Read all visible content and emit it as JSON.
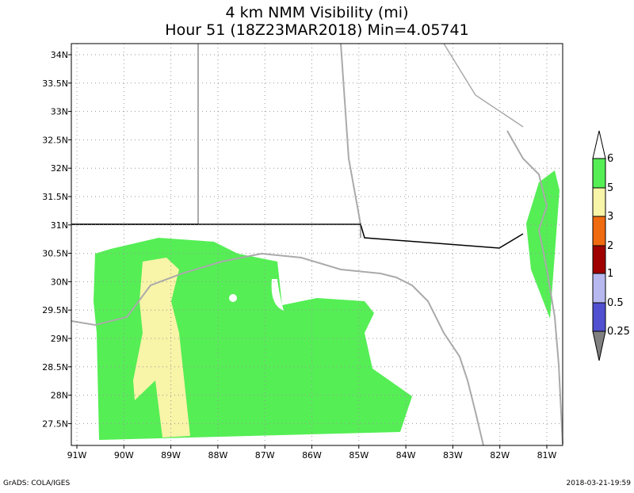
{
  "title": [
    "4 km NMM Visibility (mi)",
    "Hour 51 (18Z23MAR2018) Min=4.05741"
  ],
  "lat_labels": [
    "34N",
    "33.5N",
    "33N",
    "32.5N",
    "32N",
    "31.5N",
    "31N",
    "30.5N",
    "30N",
    "29.5N",
    "29N",
    "28.5N",
    "28N",
    "27.5N"
  ],
  "lon_labels": [
    "91W",
    "90W",
    "89W",
    "88W",
    "87W",
    "86W",
    "85W",
    "84W",
    "83W",
    "82W",
    "81W"
  ],
  "colorbar": {
    "labels": [
      "6",
      "5",
      "3",
      "2",
      "1",
      "0.5",
      "0.25"
    ],
    "colors": [
      "#ffffff",
      "#55ee55",
      "#f8f4a8",
      "#f06a10",
      "#a00000",
      "#b8b8f0",
      "#5050d0",
      "#808080"
    ]
  },
  "footer": {
    "left": "GrADS: COLA/IGES",
    "right": "2018-03-21-19:59"
  }
}
